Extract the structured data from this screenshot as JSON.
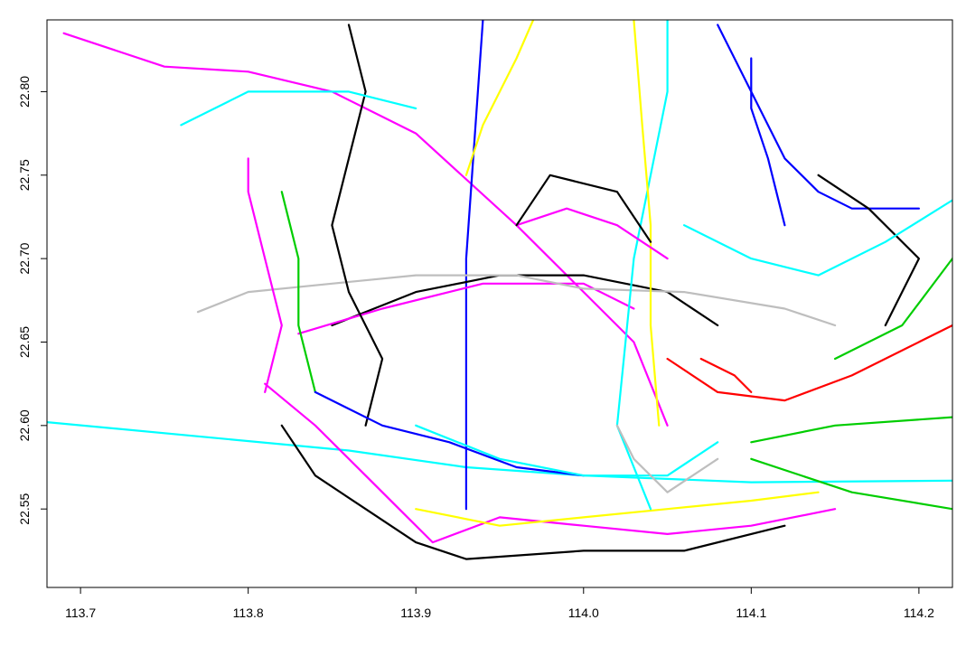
{
  "chart_data": {
    "type": "line",
    "title": "",
    "xlabel": "",
    "ylabel": "",
    "xlim": [
      113.68,
      114.22
    ],
    "ylim": [
      22.503,
      22.843
    ],
    "x_ticks": [
      113.7,
      113.8,
      113.9,
      114.0,
      114.1,
      114.2
    ],
    "x_tick_labels": [
      "113.7",
      "113.8",
      "113.9",
      "114.0",
      "114.1",
      "114.2"
    ],
    "y_ticks": [
      22.55,
      22.6,
      22.65,
      22.7,
      22.75,
      22.8
    ],
    "y_tick_labels": [
      "22.55",
      "22.60",
      "22.65",
      "22.70",
      "22.75",
      "22.80"
    ],
    "grid": false,
    "legend": "none",
    "colors": [
      "#000000",
      "#ff0000",
      "#00cd00",
      "#0000ff",
      "#00ffff",
      "#ff00ff",
      "#ffff00",
      "#bebebe"
    ],
    "series": [
      {
        "color": "#00ffff",
        "points": [
          [
            113.68,
            22.602
          ],
          [
            113.86,
            22.585
          ],
          [
            113.93,
            22.575
          ],
          [
            114.0,
            22.57
          ],
          [
            114.1,
            22.566
          ],
          [
            114.22,
            22.567
          ]
        ]
      },
      {
        "color": "#ff00ff",
        "points": [
          [
            113.69,
            22.835
          ],
          [
            113.75,
            22.815
          ],
          [
            113.8,
            22.812
          ],
          [
            113.85,
            22.8
          ],
          [
            113.9,
            22.775
          ],
          [
            113.96,
            22.72
          ],
          [
            114.0,
            22.68
          ],
          [
            114.03,
            22.65
          ],
          [
            114.05,
            22.6
          ]
        ]
      },
      {
        "color": "#0000ff",
        "points": [
          [
            113.94,
            22.843
          ],
          [
            113.93,
            22.7
          ],
          [
            113.93,
            22.55
          ]
        ]
      },
      {
        "color": "#ff00ff",
        "points": [
          [
            113.81,
            22.625
          ],
          [
            113.84,
            22.6
          ],
          [
            113.87,
            22.57
          ],
          [
            113.89,
            22.55
          ],
          [
            113.91,
            22.53
          ],
          [
            113.95,
            22.545
          ],
          [
            114.0,
            22.54
          ],
          [
            114.05,
            22.535
          ],
          [
            114.1,
            22.54
          ],
          [
            114.15,
            22.55
          ]
        ]
      },
      {
        "color": "#000000",
        "points": [
          [
            113.82,
            22.6
          ],
          [
            113.84,
            22.57
          ],
          [
            113.87,
            22.55
          ],
          [
            113.9,
            22.53
          ],
          [
            113.93,
            22.52
          ],
          [
            114.0,
            22.525
          ],
          [
            114.06,
            22.525
          ],
          [
            114.12,
            22.54
          ]
        ]
      },
      {
        "color": "#ffff00",
        "points": [
          [
            113.9,
            22.55
          ],
          [
            113.95,
            22.54
          ],
          [
            114.0,
            22.545
          ],
          [
            114.05,
            22.55
          ],
          [
            114.1,
            22.555
          ],
          [
            114.14,
            22.56
          ]
        ]
      },
      {
        "color": "#00cd00",
        "points": [
          [
            114.1,
            22.59
          ],
          [
            114.15,
            22.6
          ],
          [
            114.22,
            22.605
          ]
        ]
      },
      {
        "color": "#00cd00",
        "points": [
          [
            114.1,
            22.58
          ],
          [
            114.16,
            22.56
          ],
          [
            114.22,
            22.55
          ]
        ]
      },
      {
        "color": "#ff0000",
        "points": [
          [
            114.05,
            22.64
          ],
          [
            114.08,
            22.62
          ],
          [
            114.12,
            22.615
          ],
          [
            114.16,
            22.63
          ],
          [
            114.22,
            22.66
          ]
        ]
      },
      {
        "color": "#000000",
        "points": [
          [
            113.85,
            22.66
          ],
          [
            113.9,
            22.68
          ],
          [
            113.95,
            22.69
          ],
          [
            114.0,
            22.69
          ],
          [
            114.05,
            22.68
          ],
          [
            114.08,
            22.66
          ]
        ]
      },
      {
        "color": "#ff00ff",
        "points": [
          [
            113.83,
            22.655
          ],
          [
            113.88,
            22.67
          ],
          [
            113.94,
            22.685
          ],
          [
            114.0,
            22.685
          ],
          [
            114.03,
            22.67
          ]
        ]
      },
      {
        "color": "#bebebe",
        "points": [
          [
            113.77,
            22.668
          ],
          [
            113.8,
            22.68
          ],
          [
            113.85,
            22.685
          ],
          [
            113.9,
            22.69
          ],
          [
            113.96,
            22.69
          ],
          [
            114.0,
            22.682
          ],
          [
            114.06,
            22.68
          ],
          [
            114.12,
            22.67
          ],
          [
            114.15,
            22.66
          ]
        ]
      },
      {
        "color": "#000000",
        "points": [
          [
            113.87,
            22.6
          ],
          [
            113.88,
            22.64
          ],
          [
            113.86,
            22.68
          ],
          [
            113.85,
            22.72
          ],
          [
            113.86,
            22.76
          ],
          [
            113.87,
            22.8
          ],
          [
            113.86,
            22.84
          ]
        ]
      },
      {
        "color": "#00cd00",
        "points": [
          [
            113.84,
            22.62
          ],
          [
            113.83,
            22.66
          ],
          [
            113.83,
            22.7
          ],
          [
            113.82,
            22.74
          ]
        ]
      },
      {
        "color": "#ff00ff",
        "points": [
          [
            113.81,
            22.62
          ],
          [
            113.82,
            22.66
          ],
          [
            113.81,
            22.7
          ],
          [
            113.8,
            22.74
          ],
          [
            113.8,
            22.76
          ]
        ]
      },
      {
        "color": "#0000ff",
        "points": [
          [
            114.08,
            22.84
          ],
          [
            114.1,
            22.8
          ],
          [
            114.12,
            22.76
          ],
          [
            114.14,
            22.74
          ],
          [
            114.16,
            22.73
          ],
          [
            114.2,
            22.73
          ]
        ]
      },
      {
        "color": "#0000ff",
        "points": [
          [
            114.1,
            22.82
          ],
          [
            114.1,
            22.79
          ],
          [
            114.11,
            22.76
          ],
          [
            114.12,
            22.72
          ]
        ]
      },
      {
        "color": "#000000",
        "points": [
          [
            114.14,
            22.75
          ],
          [
            114.17,
            22.73
          ],
          [
            114.2,
            22.7
          ],
          [
            114.19,
            22.68
          ],
          [
            114.18,
            22.66
          ]
        ]
      },
      {
        "color": "#00ffff",
        "points": [
          [
            114.06,
            22.72
          ],
          [
            114.1,
            22.7
          ],
          [
            114.14,
            22.69
          ],
          [
            114.18,
            22.71
          ],
          [
            114.22,
            22.735
          ]
        ]
      },
      {
        "color": "#ffff00",
        "points": [
          [
            113.97,
            22.843
          ],
          [
            113.96,
            22.82
          ],
          [
            113.94,
            22.78
          ],
          [
            113.93,
            22.75
          ]
        ]
      },
      {
        "color": "#00ffff",
        "points": [
          [
            114.05,
            22.843
          ],
          [
            114.05,
            22.8
          ],
          [
            114.04,
            22.75
          ],
          [
            114.03,
            22.7
          ],
          [
            114.025,
            22.65
          ],
          [
            114.02,
            22.6
          ],
          [
            114.04,
            22.55
          ]
        ]
      },
      {
        "color": "#ffff00",
        "points": [
          [
            114.03,
            22.843
          ],
          [
            114.035,
            22.78
          ],
          [
            114.04,
            22.72
          ],
          [
            114.04,
            22.66
          ],
          [
            114.045,
            22.6
          ]
        ]
      },
      {
        "color": "#00ffff",
        "points": [
          [
            113.76,
            22.78
          ],
          [
            113.8,
            22.8
          ],
          [
            113.86,
            22.8
          ],
          [
            113.9,
            22.79
          ]
        ]
      },
      {
        "color": "#ff00ff",
        "points": [
          [
            113.96,
            22.72
          ],
          [
            113.99,
            22.73
          ],
          [
            114.02,
            22.72
          ],
          [
            114.05,
            22.7
          ]
        ]
      },
      {
        "color": "#0000ff",
        "points": [
          [
            113.84,
            22.62
          ],
          [
            113.88,
            22.6
          ],
          [
            113.92,
            22.59
          ],
          [
            113.96,
            22.575
          ],
          [
            114.0,
            22.57
          ]
        ]
      },
      {
        "color": "#00ffff",
        "points": [
          [
            113.9,
            22.6
          ],
          [
            113.95,
            22.58
          ],
          [
            114.0,
            22.57
          ],
          [
            114.05,
            22.57
          ],
          [
            114.08,
            22.59
          ]
        ]
      },
      {
        "color": "#bebebe",
        "points": [
          [
            114.02,
            22.6
          ],
          [
            114.03,
            22.58
          ],
          [
            114.05,
            22.56
          ],
          [
            114.08,
            22.58
          ]
        ]
      },
      {
        "color": "#ff0000",
        "points": [
          [
            114.07,
            22.64
          ],
          [
            114.09,
            22.63
          ],
          [
            114.1,
            22.62
          ]
        ]
      },
      {
        "color": "#00cd00",
        "points": [
          [
            114.15,
            22.64
          ],
          [
            114.19,
            22.66
          ],
          [
            114.22,
            22.7
          ]
        ]
      },
      {
        "color": "#000000",
        "points": [
          [
            113.96,
            22.72
          ],
          [
            113.98,
            22.75
          ],
          [
            114.02,
            22.74
          ],
          [
            114.04,
            22.71
          ]
        ]
      }
    ]
  }
}
